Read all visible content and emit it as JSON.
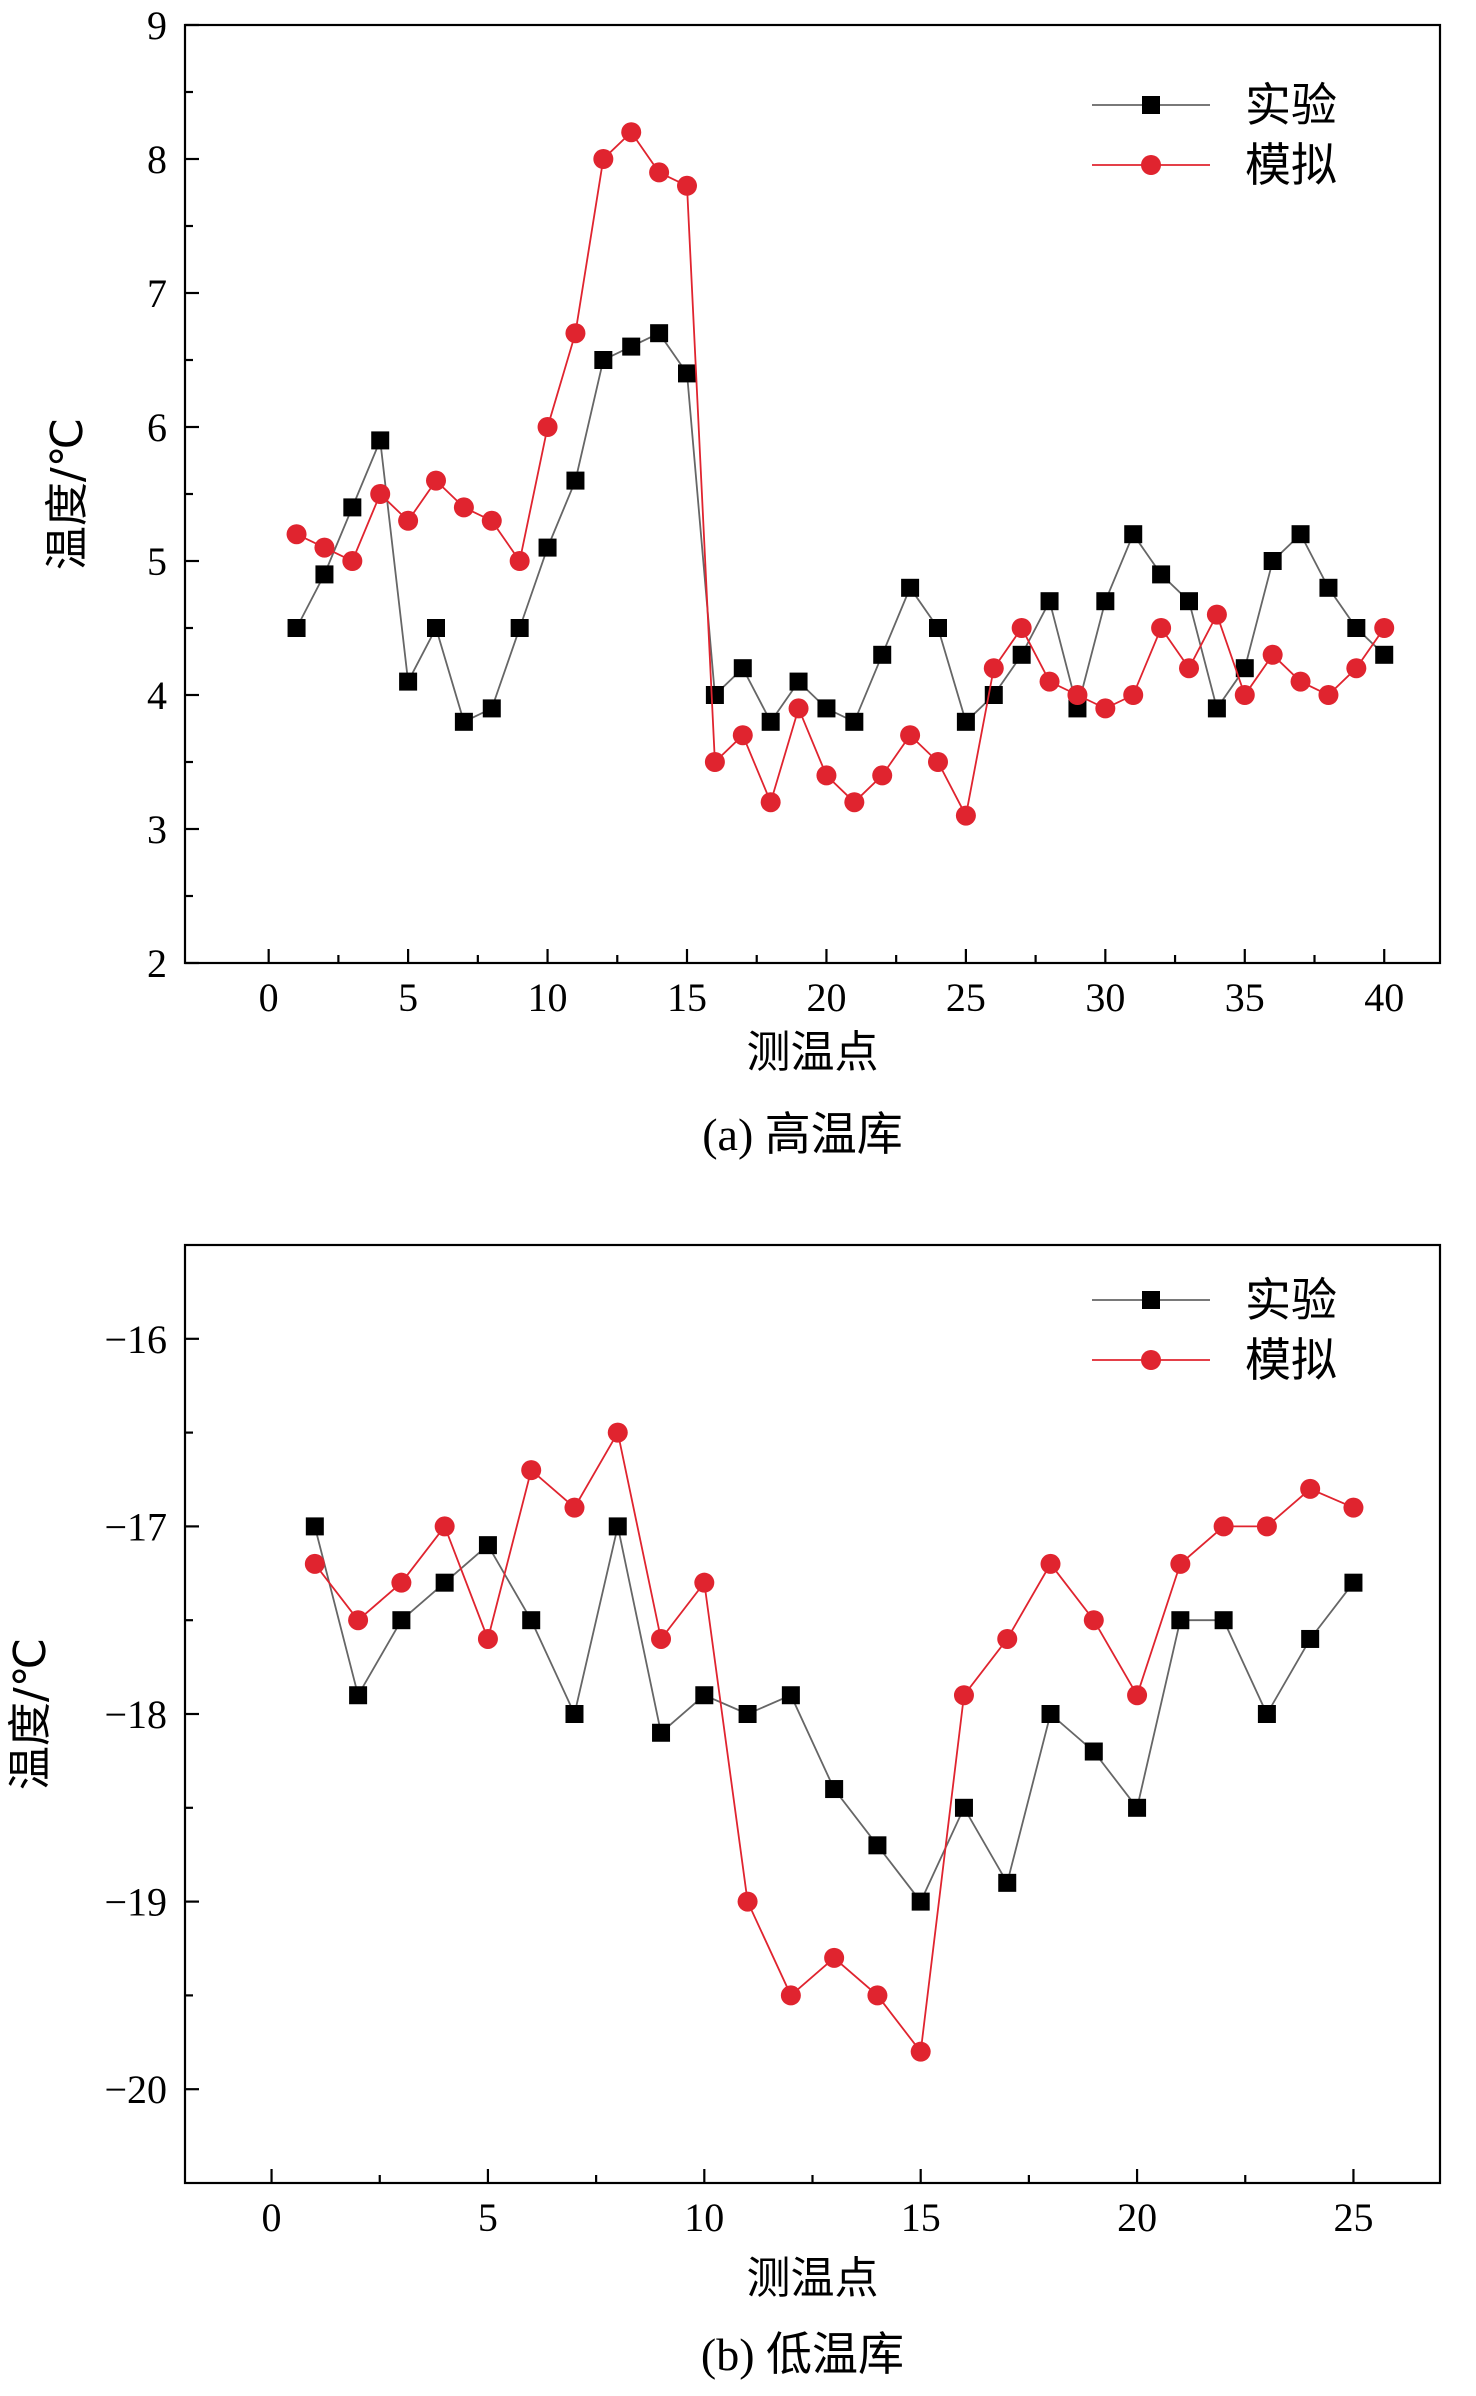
{
  "chart_data": [
    {
      "type": "line",
      "caption": "(a) 高温库",
      "xlabel": "测温点",
      "ylabel": "温度/℃",
      "xlim": [
        -3,
        42
      ],
      "ylim": [
        2,
        9
      ],
      "xticks": [
        0,
        5,
        10,
        15,
        20,
        25,
        30,
        35,
        40
      ],
      "yticks": [
        2,
        3,
        4,
        5,
        6,
        7,
        8,
        9
      ],
      "x_tick_labels": [
        "0",
        "5",
        "10",
        "15",
        "20",
        "25",
        "30",
        "35",
        "40"
      ],
      "y_tick_labels": [
        "2",
        "3",
        "4",
        "5",
        "6",
        "7",
        "8",
        "9"
      ],
      "legend_position": "top-right",
      "x": [
        1,
        2,
        3,
        4,
        5,
        6,
        7,
        8,
        9,
        10,
        11,
        12,
        13,
        14,
        15,
        16,
        17,
        18,
        19,
        20,
        21,
        22,
        23,
        24,
        25,
        26,
        27,
        28,
        29,
        30,
        31,
        32,
        33,
        34,
        35,
        36,
        37,
        38,
        39,
        40
      ],
      "series": [
        {
          "name": "实验",
          "marker": "square",
          "color": "#000000",
          "line_color": "#666666",
          "values": [
            4.5,
            4.9,
            5.4,
            5.9,
            4.1,
            4.5,
            3.8,
            3.9,
            4.5,
            5.1,
            5.6,
            6.5,
            6.6,
            6.7,
            6.4,
            4.0,
            4.2,
            3.8,
            4.1,
            3.9,
            3.8,
            4.3,
            4.8,
            4.5,
            3.8,
            4.0,
            4.3,
            4.7,
            3.9,
            4.7,
            5.2,
            4.9,
            4.7,
            3.9,
            4.2,
            5.0,
            5.2,
            4.8,
            4.5,
            4.3
          ]
        },
        {
          "name": "模拟",
          "marker": "circle",
          "color": "#e0242f",
          "line_color": "#e0242f",
          "values": [
            5.2,
            5.1,
            5.0,
            5.5,
            5.3,
            5.6,
            5.4,
            5.3,
            5.0,
            6.0,
            6.7,
            8.0,
            8.2,
            7.9,
            7.8,
            3.5,
            3.7,
            3.2,
            3.9,
            3.4,
            3.2,
            3.4,
            3.7,
            3.5,
            3.1,
            4.2,
            4.5,
            4.1,
            4.0,
            3.9,
            4.0,
            4.5,
            4.2,
            4.6,
            4.0,
            4.3,
            4.1,
            4.0,
            4.2,
            4.5
          ]
        }
      ]
    },
    {
      "type": "line",
      "caption": "(b) 低温库",
      "xlabel": "测温点",
      "ylabel": "温度/℃",
      "xlim": [
        -2,
        27
      ],
      "ylim": [
        -20.5,
        -15.5
      ],
      "xticks": [
        0,
        5,
        10,
        15,
        20,
        25
      ],
      "yticks": [
        -16,
        -17,
        -18,
        -19,
        -20
      ],
      "x_tick_labels": [
        "0",
        "5",
        "10",
        "15",
        "20",
        "25"
      ],
      "y_tick_labels": [
        "−16",
        "−17",
        "−18",
        "−19",
        "−20"
      ],
      "legend_position": "top-right",
      "x": [
        1,
        2,
        3,
        4,
        5,
        6,
        7,
        8,
        9,
        10,
        11,
        12,
        13,
        14,
        15,
        16,
        17,
        18,
        19,
        20,
        21,
        22,
        23,
        24,
        25
      ],
      "series": [
        {
          "name": "实验",
          "marker": "square",
          "color": "#000000",
          "line_color": "#666666",
          "values": [
            -17.0,
            -17.9,
            -17.5,
            -17.3,
            -17.1,
            -17.5,
            -18.0,
            -17.0,
            -18.1,
            -17.9,
            -18.0,
            -17.9,
            -18.4,
            -18.7,
            -19.0,
            -18.5,
            -18.9,
            -18.0,
            -18.2,
            -18.5,
            -17.5,
            -17.5,
            -18.0,
            -17.6,
            -17.3
          ]
        },
        {
          "name": "模拟",
          "marker": "circle",
          "color": "#e0242f",
          "line_color": "#e0242f",
          "values": [
            -17.2,
            -17.5,
            -17.3,
            -17.0,
            -17.6,
            -16.7,
            -16.9,
            -16.5,
            -17.6,
            -17.3,
            -19.0,
            -19.5,
            -19.3,
            -19.5,
            -19.8,
            -17.9,
            -17.6,
            -17.2,
            -17.5,
            -17.9,
            -17.2,
            -17.0,
            -17.0,
            -16.8,
            -16.9
          ]
        }
      ]
    }
  ]
}
